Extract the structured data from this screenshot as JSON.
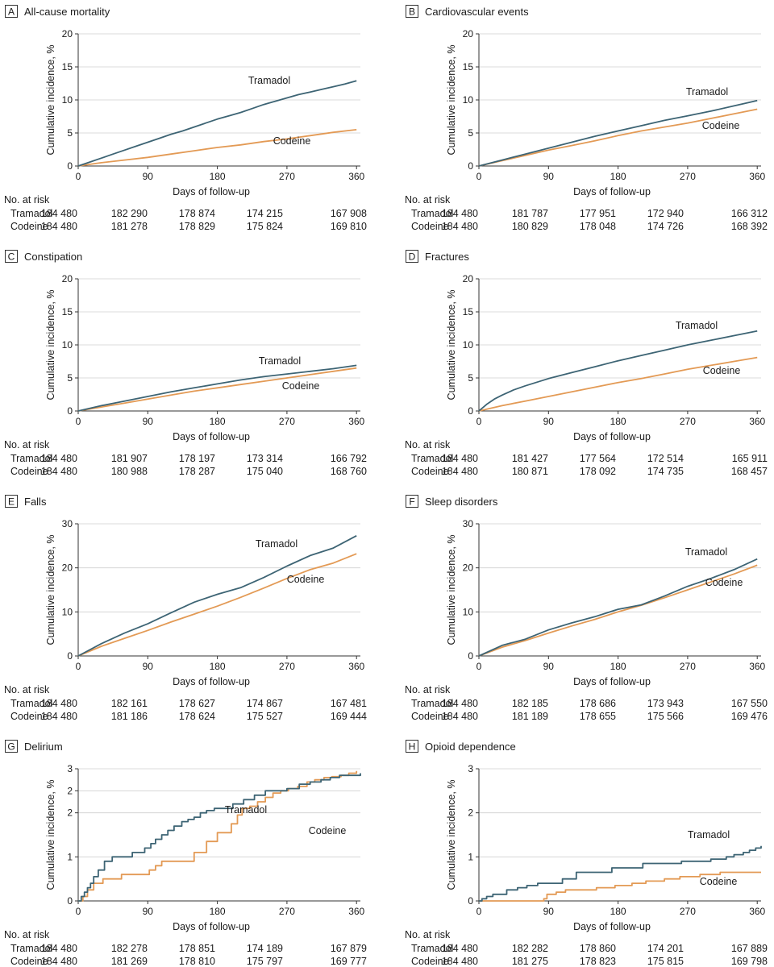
{
  "chart_data": [
    {
      "type": "line",
      "panel_letter": "A",
      "title": "All-cause mortality",
      "xlabel": "Days of follow-up",
      "ylabel": "Cumulative incidence, %",
      "xlim": [
        0,
        365
      ],
      "ylim": [
        0,
        20
      ],
      "xticks": [
        "0",
        "90",
        "180",
        "270",
        "360"
      ],
      "yticks": [
        "0",
        "5",
        "10",
        "15",
        "20"
      ],
      "series": [
        {
          "name": "Tramadol",
          "color": "#3d6474",
          "x": [
            0,
            15,
            30,
            45,
            60,
            75,
            90,
            105,
            120,
            135,
            150,
            165,
            180,
            195,
            210,
            225,
            240,
            255,
            270,
            285,
            300,
            315,
            330,
            345,
            360
          ],
          "y": [
            0,
            0.6,
            1.2,
            1.8,
            2.4,
            3.0,
            3.6,
            4.2,
            4.8,
            5.3,
            5.9,
            6.5,
            7.1,
            7.6,
            8.1,
            8.7,
            9.3,
            9.8,
            10.3,
            10.8,
            11.2,
            11.6,
            12.0,
            12.4,
            12.9
          ]
        },
        {
          "name": "Codeine",
          "color": "#e39a55",
          "x": [
            0,
            30,
            60,
            90,
            120,
            150,
            180,
            210,
            240,
            270,
            300,
            330,
            360
          ],
          "y": [
            0,
            0.5,
            0.9,
            1.3,
            1.8,
            2.3,
            2.8,
            3.2,
            3.7,
            4.1,
            4.6,
            5.1,
            5.5
          ]
        }
      ],
      "curve_labels": [
        "Tramadol",
        "Codeine"
      ],
      "risk_header": "No. at risk",
      "at_risk": [
        {
          "group": "Tramadol",
          "values": [
            "184 480",
            "182 290",
            "178 874",
            "174 215",
            "167 908"
          ]
        },
        {
          "group": "Codeine",
          "values": [
            "184 480",
            "181 278",
            "178 829",
            "175 824",
            "169 810"
          ]
        }
      ]
    },
    {
      "type": "line",
      "panel_letter": "B",
      "title": "Cardiovascular events",
      "xlabel": "Days of follow-up",
      "ylabel": "Cumulative incidence, %",
      "xlim": [
        0,
        365
      ],
      "ylim": [
        0,
        20
      ],
      "xticks": [
        "0",
        "90",
        "180",
        "270",
        "360"
      ],
      "yticks": [
        "0",
        "5",
        "10",
        "15",
        "20"
      ],
      "series": [
        {
          "name": "Tramadol",
          "color": "#3d6474",
          "x": [
            0,
            30,
            60,
            90,
            120,
            150,
            180,
            210,
            240,
            270,
            300,
            330,
            360
          ],
          "y": [
            0,
            0.9,
            1.8,
            2.7,
            3.6,
            4.5,
            5.3,
            6.1,
            6.9,
            7.6,
            8.3,
            9.1,
            9.9
          ]
        },
        {
          "name": "Codeine",
          "color": "#e39a55",
          "x": [
            0,
            30,
            60,
            90,
            120,
            150,
            180,
            210,
            240,
            270,
            300,
            330,
            360
          ],
          "y": [
            0,
            0.8,
            1.6,
            2.4,
            3.1,
            3.8,
            4.6,
            5.3,
            5.9,
            6.5,
            7.2,
            7.9,
            8.6
          ]
        }
      ],
      "curve_labels": [
        "Tramadol",
        "Codeine"
      ],
      "risk_header": "No. at risk",
      "at_risk": [
        {
          "group": "Tramadol",
          "values": [
            "184 480",
            "181 787",
            "177 951",
            "172 940",
            "166 312"
          ]
        },
        {
          "group": "Codeine",
          "values": [
            "184 480",
            "180 829",
            "178 048",
            "174 726",
            "168 392"
          ]
        }
      ]
    },
    {
      "type": "line",
      "panel_letter": "C",
      "title": "Constipation",
      "xlabel": "Days of follow-up",
      "ylabel": "Cumulative incidence, %",
      "xlim": [
        0,
        365
      ],
      "ylim": [
        0,
        20
      ],
      "xticks": [
        "0",
        "90",
        "180",
        "270",
        "360"
      ],
      "yticks": [
        "0",
        "5",
        "10",
        "15",
        "20"
      ],
      "series": [
        {
          "name": "Tramadol",
          "color": "#3d6474",
          "x": [
            0,
            30,
            60,
            90,
            120,
            150,
            180,
            210,
            240,
            270,
            300,
            330,
            360
          ],
          "y": [
            0,
            0.8,
            1.5,
            2.2,
            2.9,
            3.5,
            4.1,
            4.7,
            5.2,
            5.6,
            6.0,
            6.4,
            6.9
          ]
        },
        {
          "name": "Codeine",
          "color": "#e39a55",
          "x": [
            0,
            30,
            60,
            90,
            120,
            150,
            180,
            210,
            240,
            270,
            300,
            330,
            360
          ],
          "y": [
            0,
            0.6,
            1.2,
            1.8,
            2.4,
            3.0,
            3.5,
            4.0,
            4.5,
            5.0,
            5.5,
            6.0,
            6.5
          ]
        }
      ],
      "curve_labels": [
        "Tramadol",
        "Codeine"
      ],
      "risk_header": "No. at risk",
      "at_risk": [
        {
          "group": "Tramadol",
          "values": [
            "184 480",
            "181 907",
            "178 197",
            "173 314",
            "166 792"
          ]
        },
        {
          "group": "Codeine",
          "values": [
            "184 480",
            "180 988",
            "178 287",
            "175 040",
            "168 760"
          ]
        }
      ]
    },
    {
      "type": "line",
      "panel_letter": "D",
      "title": "Fractures",
      "xlabel": "Days of follow-up",
      "ylabel": "Cumulative incidence, %",
      "xlim": [
        0,
        365
      ],
      "ylim": [
        0,
        20
      ],
      "xticks": [
        "0",
        "90",
        "180",
        "270",
        "360"
      ],
      "yticks": [
        "0",
        "5",
        "10",
        "15",
        "20"
      ],
      "series": [
        {
          "name": "Tramadol",
          "color": "#3d6474",
          "x": [
            0,
            10,
            20,
            30,
            45,
            60,
            90,
            120,
            150,
            180,
            210,
            240,
            270,
            300,
            330,
            360
          ],
          "y": [
            0,
            1.0,
            1.8,
            2.4,
            3.2,
            3.8,
            4.9,
            5.8,
            6.7,
            7.6,
            8.4,
            9.2,
            10.0,
            10.7,
            11.4,
            12.1
          ]
        },
        {
          "name": "Codeine",
          "color": "#e39a55",
          "x": [
            0,
            30,
            60,
            90,
            120,
            150,
            180,
            210,
            240,
            270,
            300,
            330,
            360
          ],
          "y": [
            0,
            0.8,
            1.5,
            2.2,
            2.9,
            3.6,
            4.3,
            4.9,
            5.6,
            6.3,
            6.9,
            7.5,
            8.1
          ]
        }
      ],
      "curve_labels": [
        "Tramadol",
        "Codeine"
      ],
      "risk_header": "No. at risk",
      "at_risk": [
        {
          "group": "Tramadol",
          "values": [
            "184 480",
            "181 427",
            "177 564",
            "172 514",
            "165 911"
          ]
        },
        {
          "group": "Codeine",
          "values": [
            "184 480",
            "180 871",
            "178 092",
            "174 735",
            "168 457"
          ]
        }
      ]
    },
    {
      "type": "line",
      "panel_letter": "E",
      "title": "Falls",
      "xlabel": "Days of follow-up",
      "ylabel": "Cumulative incidence, %",
      "xlim": [
        0,
        365
      ],
      "ylim": [
        0,
        30
      ],
      "xticks": [
        "0",
        "90",
        "180",
        "270",
        "360"
      ],
      "yticks": [
        "0",
        "10",
        "20",
        "30"
      ],
      "series": [
        {
          "name": "Tramadol",
          "color": "#3d6474",
          "x": [
            0,
            30,
            60,
            90,
            120,
            150,
            180,
            210,
            240,
            270,
            300,
            330,
            360
          ],
          "y": [
            0,
            2.8,
            5.2,
            7.3,
            9.8,
            12.2,
            14.0,
            15.5,
            17.8,
            20.4,
            22.8,
            24.5,
            27.3
          ]
        },
        {
          "name": "Codeine",
          "color": "#e39a55",
          "x": [
            0,
            30,
            60,
            90,
            120,
            150,
            180,
            210,
            240,
            270,
            300,
            330,
            360
          ],
          "y": [
            0,
            2.2,
            4.0,
            5.8,
            7.7,
            9.5,
            11.3,
            13.3,
            15.4,
            17.6,
            19.6,
            21.1,
            23.2
          ]
        }
      ],
      "curve_labels": [
        "Tramadol",
        "Codeine"
      ],
      "risk_header": "No. at risk",
      "at_risk": [
        {
          "group": "Tramadol",
          "values": [
            "184 480",
            "182 161",
            "178 627",
            "174 867",
            "167 481"
          ]
        },
        {
          "group": "Codeine",
          "values": [
            "184 480",
            "181 186",
            "178 624",
            "175 527",
            "169 444"
          ]
        }
      ]
    },
    {
      "type": "line",
      "panel_letter": "F",
      "title": "Sleep disorders",
      "xlabel": "Days of follow-up",
      "ylabel": "Cumulative incidence, %",
      "xlim": [
        0,
        365
      ],
      "ylim": [
        0,
        30
      ],
      "xticks": [
        "0",
        "90",
        "180",
        "270",
        "360"
      ],
      "yticks": [
        "0",
        "10",
        "20",
        "30"
      ],
      "series": [
        {
          "name": "Tramadol",
          "color": "#3d6474",
          "x": [
            0,
            30,
            60,
            90,
            120,
            150,
            180,
            210,
            240,
            270,
            300,
            330,
            360
          ],
          "y": [
            0,
            2.4,
            3.8,
            5.9,
            7.5,
            8.9,
            10.6,
            11.6,
            13.6,
            15.8,
            17.6,
            19.6,
            22.0
          ]
        },
        {
          "name": "Codeine",
          "color": "#e39a55",
          "x": [
            0,
            30,
            60,
            90,
            120,
            150,
            180,
            210,
            240,
            270,
            300,
            330,
            360
          ],
          "y": [
            0,
            2.0,
            3.5,
            5.2,
            6.8,
            8.3,
            10.0,
            11.5,
            13.2,
            15.0,
            16.8,
            18.6,
            20.6
          ]
        }
      ],
      "curve_labels": [
        "Tramadol",
        "Codeine"
      ],
      "risk_header": "No. at risk",
      "at_risk": [
        {
          "group": "Tramadol",
          "values": [
            "184 480",
            "182 185",
            "178 686",
            "173 943",
            "167 550"
          ]
        },
        {
          "group": "Codeine",
          "values": [
            "184 480",
            "181 189",
            "178 655",
            "175 566",
            "169 476"
          ]
        }
      ]
    },
    {
      "type": "line",
      "panel_letter": "G",
      "title": "Delirium",
      "xlabel": "Days of follow-up",
      "ylabel": "Cumulative incidence, %",
      "xlim": [
        0,
        365
      ],
      "ylim": [
        0,
        3
      ],
      "xticks": [
        "0",
        "90",
        "180",
        "270",
        "360"
      ],
      "yticks": [
        "0",
        "1",
        "2",
        "2",
        "3"
      ],
      "ytick_values": [
        0,
        1,
        2,
        2.5,
        3
      ],
      "series": [
        {
          "name": "Tramadol",
          "color": "#3d6474",
          "step": true,
          "x": [
            0,
            4,
            8,
            12,
            16,
            20,
            26,
            34,
            44,
            70,
            86,
            94,
            100,
            108,
            116,
            124,
            134,
            142,
            150,
            158,
            166,
            176,
            186,
            200,
            214,
            228,
            242,
            256,
            270,
            286,
            300,
            314,
            326,
            338,
            365
          ],
          "y": [
            0,
            0.1,
            0.2,
            0.3,
            0.4,
            0.55,
            0.7,
            0.9,
            1.0,
            1.1,
            1.2,
            1.3,
            1.4,
            1.5,
            1.6,
            1.7,
            1.8,
            1.85,
            1.9,
            2.0,
            2.05,
            2.1,
            2.1,
            2.2,
            2.3,
            2.4,
            2.5,
            2.5,
            2.55,
            2.65,
            2.7,
            2.75,
            2.8,
            2.85,
            2.9
          ]
        },
        {
          "name": "Codeine",
          "color": "#e39a55",
          "step": true,
          "x": [
            0,
            6,
            12,
            20,
            32,
            56,
            92,
            100,
            108,
            150,
            166,
            180,
            198,
            206,
            212,
            222,
            232,
            242,
            252,
            262,
            272,
            284,
            296,
            306,
            318,
            328,
            340,
            350,
            360
          ],
          "y": [
            0,
            0.1,
            0.25,
            0.4,
            0.5,
            0.6,
            0.7,
            0.8,
            0.9,
            1.1,
            1.35,
            1.55,
            1.75,
            1.95,
            2.1,
            2.15,
            2.25,
            2.35,
            2.45,
            2.5,
            2.55,
            2.6,
            2.7,
            2.75,
            2.8,
            2.82,
            2.85,
            2.9,
            2.95
          ]
        }
      ],
      "curve_labels": [
        "Tramadol",
        "Codeine"
      ],
      "risk_header": "No. at risk",
      "at_risk": [
        {
          "group": "Tramadol",
          "values": [
            "184 480",
            "182 278",
            "178 851",
            "174 189",
            "167 879"
          ]
        },
        {
          "group": "Codeine",
          "values": [
            "184 480",
            "181 269",
            "178 810",
            "175 797",
            "169 777"
          ]
        }
      ]
    },
    {
      "type": "line",
      "panel_letter": "H",
      "title": "Opioid dependence",
      "xlabel": "Days of follow-up",
      "ylabel": "Cumulative incidence, %",
      "xlim": [
        0,
        365
      ],
      "ylim": [
        0,
        3
      ],
      "xticks": [
        "0",
        "90",
        "180",
        "270",
        "360"
      ],
      "yticks": [
        "0",
        "1",
        "2",
        "3"
      ],
      "series": [
        {
          "name": "Tramadol",
          "color": "#3d6474",
          "step": true,
          "x": [
            0,
            4,
            10,
            18,
            36,
            50,
            62,
            76,
            108,
            126,
            172,
            212,
            262,
            300,
            320,
            330,
            342,
            350,
            358,
            365
          ],
          "y": [
            0,
            0.05,
            0.1,
            0.15,
            0.25,
            0.3,
            0.35,
            0.4,
            0.5,
            0.65,
            0.75,
            0.85,
            0.9,
            0.95,
            1.0,
            1.05,
            1.1,
            1.15,
            1.2,
            1.25
          ]
        },
        {
          "name": "Codeine",
          "color": "#e39a55",
          "step": true,
          "x": [
            0,
            80,
            84,
            88,
            100,
            112,
            152,
            176,
            198,
            216,
            240,
            260,
            286,
            312,
            365
          ],
          "y": [
            0,
            0,
            0.05,
            0.15,
            0.2,
            0.25,
            0.3,
            0.35,
            0.4,
            0.45,
            0.5,
            0.55,
            0.6,
            0.65,
            0.65
          ]
        }
      ],
      "curve_labels": [
        "Tramadol",
        "Codeine"
      ],
      "risk_header": "No. at risk",
      "at_risk": [
        {
          "group": "Tramadol",
          "values": [
            "184 480",
            "182 282",
            "178 860",
            "174 201",
            "167 889"
          ]
        },
        {
          "group": "Codeine",
          "values": [
            "184 480",
            "181 275",
            "178 823",
            "175 815",
            "169 798"
          ]
        }
      ]
    }
  ]
}
